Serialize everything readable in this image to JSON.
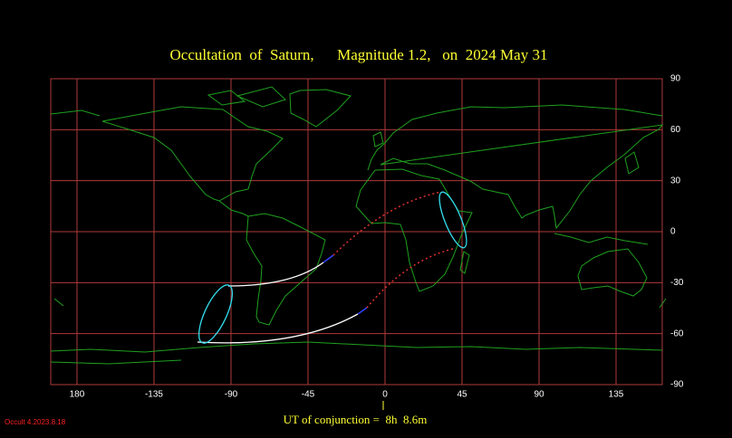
{
  "map": {
    "title": "Occultation  of  Saturn,      Magnitude 1.2,   on  2024 May 31",
    "xticks": [
      {
        "value": -180,
        "label": "180"
      },
      -135,
      -90,
      -45,
      0,
      45,
      90,
      135
    ],
    "yticks": [
      90,
      60,
      30,
      0,
      -30,
      -60,
      -90
    ],
    "conjunction": "UT of conjunction =  8h  8.6m",
    "version": "Occult 4.2023.8.18"
  }
}
